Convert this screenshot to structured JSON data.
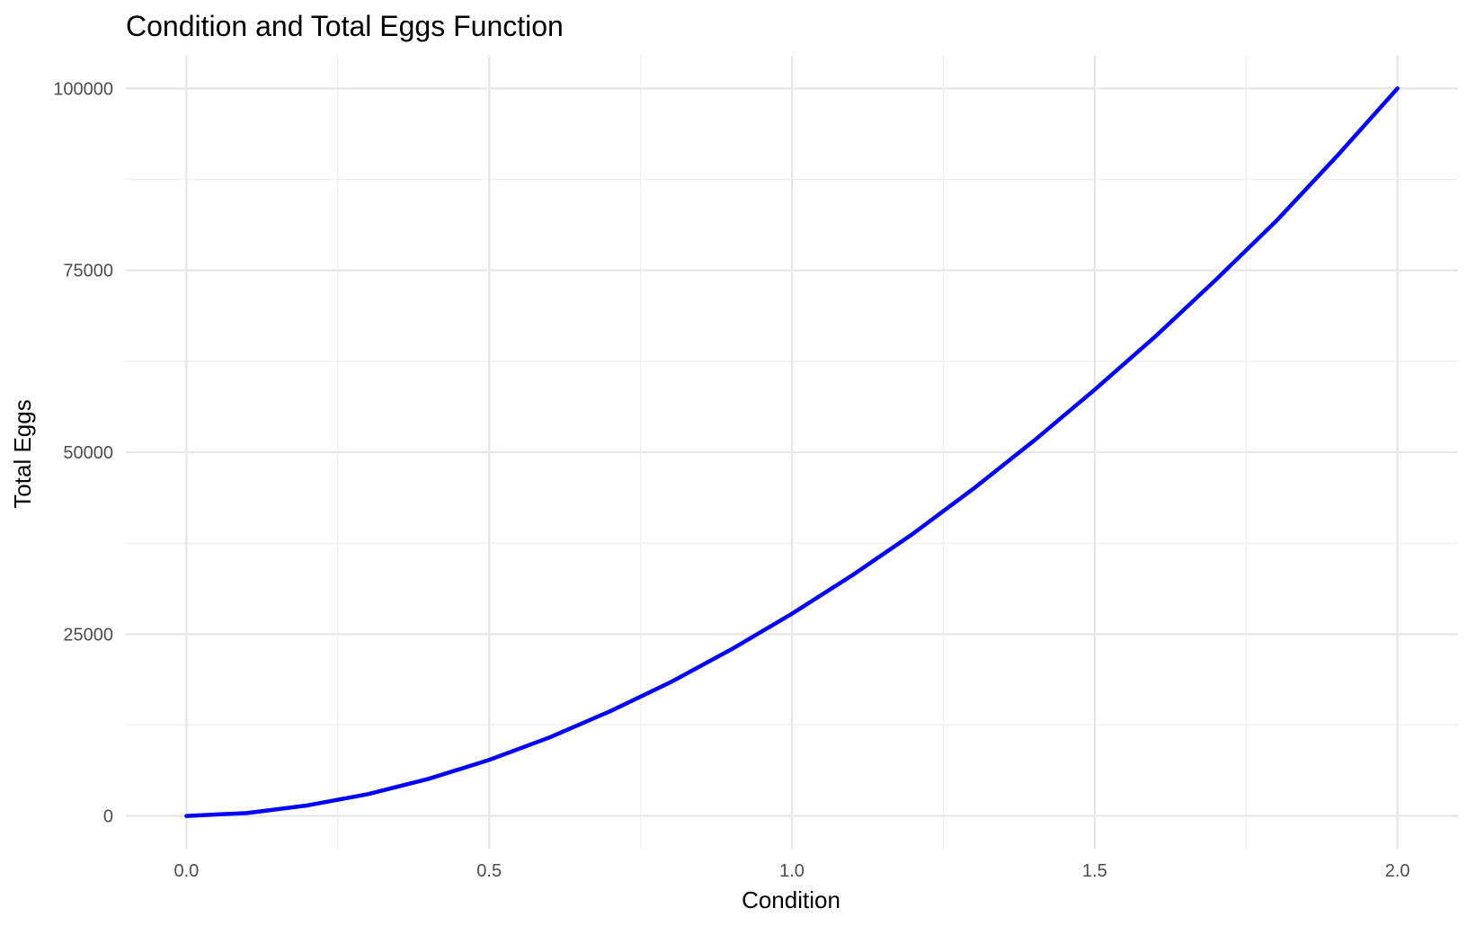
{
  "chart_data": {
    "type": "line",
    "title": "Condition and Total Eggs Function",
    "xlabel": "Condition",
    "ylabel": "Total Eggs",
    "xlim": [
      -0.1,
      2.1
    ],
    "ylim": [
      -4500,
      104500
    ],
    "x_ticks": [
      0.0,
      0.5,
      1.0,
      1.5,
      2.0
    ],
    "x_tick_labels": [
      "0.0",
      "0.5",
      "1.0",
      "1.5",
      "2.0"
    ],
    "y_ticks": [
      0,
      25000,
      50000,
      75000,
      100000
    ],
    "y_tick_labels": [
      "0",
      "25000",
      "50000",
      "75000",
      "100000"
    ],
    "x_minor_ticks": [
      0.25,
      0.75,
      1.25,
      1.75
    ],
    "y_minor_ticks": [
      12500,
      37500,
      62500,
      87500
    ],
    "grid": true,
    "legend": "none",
    "series": [
      {
        "color": "#0000ff",
        "x": [
          0.0,
          0.1,
          0.2,
          0.3,
          0.4,
          0.5,
          0.6,
          0.7,
          0.8,
          0.9,
          1.0,
          1.1,
          1.2,
          1.3,
          1.4,
          1.5,
          1.6,
          1.7,
          1.8,
          1.9,
          2.0
        ],
        "y": [
          0,
          400,
          1450,
          3000,
          5100,
          7700,
          10800,
          14400,
          18400,
          22900,
          27800,
          33100,
          38800,
          45000,
          51600,
          58600,
          65900,
          73700,
          81800,
          90700,
          100000
        ]
      }
    ]
  }
}
